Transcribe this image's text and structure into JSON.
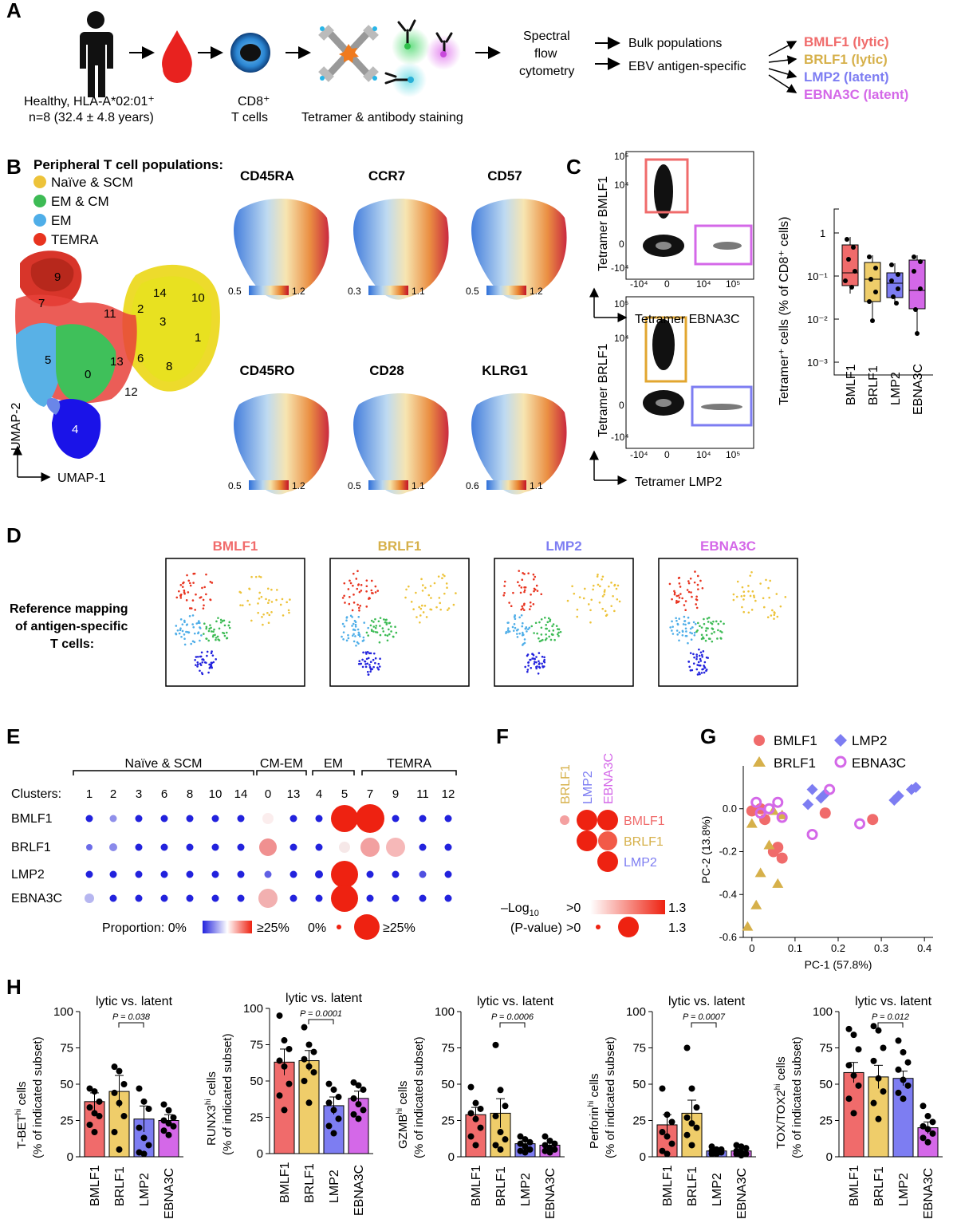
{
  "colors": {
    "bmlf1": "#F06B6B",
    "brlf1": "#D6B04A",
    "lmp2": "#7D7DF2",
    "ebna3c": "#D468E8",
    "naive": "#EDC33A",
    "emcm": "#3DBB55",
    "em": "#4FAEE8",
    "temra": "#E8331F",
    "dot_blue": "#2222DD",
    "dot_red": "#EE2211"
  },
  "panel_a": {
    "letter": "A",
    "donor_line1": "Healthy, HLA-A*02:01⁺",
    "donor_line2": "n=8 (32.4 ± 4.8 years)",
    "cells_line1": "CD8⁺",
    "cells_line2": "T cells",
    "staining": "Tetramer & antibody staining",
    "cytometry": [
      "Spectral",
      "flow",
      "cytometry"
    ],
    "bulk": "Bulk populations",
    "antigen": "EBV antigen-specific",
    "antigens": [
      "BMLF1 (lytic)",
      "BRLF1 (lytic)",
      "LMP2 (latent)",
      "EBNA3C (latent)"
    ],
    "icons": [
      "person-icon",
      "blood-drop-icon",
      "t-cell-icon",
      "tetramer-icon",
      "antibody-icon"
    ]
  },
  "panel_b": {
    "letter": "B",
    "legend_title": "Peripheral T cell populations:",
    "legend": [
      "Naïve & SCM",
      "EM & CM",
      "EM",
      "TEMRA"
    ],
    "clusters": [
      "9",
      "7",
      "14",
      "10",
      "11",
      "2",
      "3",
      "1",
      "5",
      "0",
      "13",
      "6",
      "8",
      "12",
      "4"
    ],
    "axis_x": "UMAP-1",
    "axis_y": "UMAP-2",
    "markers": [
      {
        "name": "CD45RA",
        "range": [
          "0.5",
          "1.2"
        ]
      },
      {
        "name": "CCR7",
        "range": [
          "0.3",
          "1.1"
        ]
      },
      {
        "name": "CD57",
        "range": [
          "0.5",
          "1.2"
        ]
      },
      {
        "name": "CD45RO",
        "range": [
          "0.5",
          "1.2"
        ]
      },
      {
        "name": "CD28",
        "range": [
          "0.5",
          "1.1"
        ]
      },
      {
        "name": "KLRG1",
        "range": [
          "0.6",
          "1.1"
        ]
      }
    ]
  },
  "panel_c": {
    "letter": "C",
    "flow1_y": "Tetramer BMLF1",
    "flow1_x": "Tetramer EBNA3C",
    "flow2_y": "Tetramer BRLF1",
    "flow2_x": "Tetramer LMP2",
    "flow_ticks": [
      "-10⁴",
      "0",
      "10⁴",
      "10⁵"
    ],
    "flow_yticks": [
      "10⁵",
      "10⁴",
      "0",
      "-10⁴"
    ]
  },
  "panel_d": {
    "letter": "D",
    "label": [
      "Reference mapping",
      "of antigen-specific",
      "T cells:"
    ],
    "titles": [
      "BMLF1",
      "BRLF1",
      "LMP2",
      "EBNA3C"
    ]
  },
  "panel_e": {
    "letter": "E",
    "groups": [
      "Naïve & SCM",
      "CM-EM",
      "EM",
      "TEMRA"
    ],
    "clusters_label": "Clusters:",
    "clusters": [
      "1",
      "2",
      "3",
      "6",
      "8",
      "10",
      "14",
      "0",
      "13",
      "4",
      "5",
      "7",
      "9",
      "11",
      "12"
    ],
    "rows": [
      "BMLF1",
      "BRLF1",
      "LMP2",
      "EBNA3C"
    ],
    "proportion_label": "Proportion: 0%",
    "proportion_max": "≥25%",
    "size_min": "0%",
    "size_max": "≥25%"
  },
  "panel_f": {
    "letter": "F",
    "cols": [
      "BRLF1",
      "LMP2",
      "EBNA3C"
    ],
    "rows": [
      "BMLF1",
      "BRLF1",
      "LMP2"
    ],
    "legend_label1": "–Log",
    "legend_sub": "10",
    "legend_label2": "(P-value)",
    "min": ">0",
    "max": "1.3"
  },
  "panel_g": {
    "letter": "G",
    "legend": [
      "BMLF1",
      "LMP2",
      "BRLF1",
      "EBNA3C"
    ],
    "xlabel": "PC-1 (57.8%)",
    "ylabel": "PC-2 (13.8%)",
    "xticks": [
      "0",
      "0.1",
      "0.2",
      "0.3",
      "0.4"
    ],
    "yticks": [
      "0.0",
      "-0.2",
      "-0.4",
      "-0.6"
    ]
  },
  "panel_h": {
    "letter": "H",
    "comparison": "lytic vs. latent",
    "categories": [
      "BMLF1",
      "BRLF1",
      "LMP2",
      "EBNA3C"
    ],
    "yticks": [
      "0",
      "25",
      "50",
      "75",
      "100"
    ]
  },
  "chart_data": [
    {
      "type": "scatter",
      "title": "",
      "xlabel": "PC-1 (57.8%)",
      "ylabel": "PC-2 (13.8%)",
      "xlim": [
        -0.02,
        0.42
      ],
      "ylim": [
        -0.6,
        0.2
      ],
      "series": [
        {
          "name": "BMLF1",
          "points": [
            [
              0.0,
              -0.01
            ],
            [
              0.02,
              0.0
            ],
            [
              0.03,
              -0.05
            ],
            [
              0.05,
              -0.2
            ],
            [
              0.06,
              -0.18
            ],
            [
              0.07,
              -0.23
            ],
            [
              0.17,
              -0.02
            ],
            [
              0.28,
              -0.05
            ]
          ]
        },
        {
          "name": "BRLF1",
          "points": [
            [
              -0.01,
              -0.55
            ],
            [
              0.01,
              -0.45
            ],
            [
              0.0,
              -0.07
            ],
            [
              0.02,
              -0.3
            ],
            [
              0.04,
              -0.17
            ],
            [
              0.06,
              -0.35
            ],
            [
              0.07,
              -0.03
            ],
            [
              0.05,
              -0.01
            ]
          ]
        },
        {
          "name": "LMP2",
          "points": [
            [
              0.13,
              0.02
            ],
            [
              0.14,
              0.09
            ],
            [
              0.16,
              0.05
            ],
            [
              0.17,
              0.07
            ],
            [
              0.33,
              0.04
            ],
            [
              0.34,
              0.06
            ],
            [
              0.37,
              0.09
            ],
            [
              0.38,
              0.1
            ]
          ]
        },
        {
          "name": "EBNA3C",
          "points": [
            [
              0.01,
              0.03
            ],
            [
              0.02,
              -0.02
            ],
            [
              0.04,
              0.0
            ],
            [
              0.06,
              0.03
            ],
            [
              0.07,
              -0.04
            ],
            [
              0.14,
              -0.12
            ],
            [
              0.18,
              0.09
            ],
            [
              0.25,
              -0.07
            ]
          ]
        }
      ]
    },
    {
      "type": "bar",
      "ylabel_main": "T-BET",
      "ylabel_sup": "hi",
      "ylabel_tail": " cells",
      "ylabel2": "(% of indicated subset)",
      "pvalue": "P = 0.038",
      "categories": [
        "BMLF1",
        "BRLF1",
        "LMP2",
        "EBNA3C"
      ],
      "values": [
        38,
        45,
        26,
        25
      ],
      "errors": [
        6,
        11,
        9,
        4
      ],
      "points": [
        [
          47,
          45,
          38,
          34,
          30,
          28,
          22,
          17
        ],
        [
          62,
          59,
          50,
          44,
          37,
          28,
          17,
          5
        ],
        [
          47,
          38,
          33,
          20,
          13,
          8,
          3,
          2
        ],
        [
          36,
          32,
          27,
          25,
          23,
          21,
          18,
          15
        ]
      ],
      "ylim": [
        0,
        100
      ]
    },
    {
      "type": "bar",
      "ylabel_main": "RUNX3",
      "ylabel_sup": "hi",
      "ylabel_tail": " cells",
      "ylabel2": "(% of indicated subset)",
      "pvalue": "P = 0.0001",
      "categories": [
        "BMLF1",
        "BRLF1",
        "LMP2",
        "EBNA3C"
      ],
      "values": [
        63,
        64,
        33,
        38
      ],
      "errors": [
        9,
        7,
        6,
        5
      ],
      "points": [
        [
          95,
          78,
          72,
          64,
          60,
          48,
          40,
          30
        ],
        [
          87,
          75,
          70,
          65,
          60,
          56,
          50,
          35
        ],
        [
          48,
          44,
          39,
          35,
          30,
          24,
          19,
          14
        ],
        [
          49,
          47,
          44,
          38,
          34,
          30,
          27,
          24
        ]
      ],
      "ylim": [
        0,
        100
      ]
    },
    {
      "type": "bar",
      "ylabel_main": "GZMB",
      "ylabel_sup": "hi",
      "ylabel_tail": " cells",
      "ylabel2": "(% of indicated subset)",
      "pvalue": "P = 0.0006",
      "categories": [
        "BMLF1",
        "BRLF1",
        "LMP2",
        "EBNA3C"
      ],
      "values": [
        29,
        30,
        9,
        8
      ],
      "errors": [
        5,
        10,
        2,
        1.5
      ],
      "points": [
        [
          48,
          37,
          33,
          30,
          26,
          20,
          14,
          8
        ],
        [
          77,
          46,
          35,
          28,
          17,
          12,
          8,
          5
        ],
        [
          14,
          12,
          10,
          9,
          7,
          5,
          4,
          3
        ],
        [
          14,
          11,
          9,
          8,
          6,
          5,
          4,
          3
        ]
      ],
      "ylim": [
        0,
        100
      ]
    },
    {
      "type": "bar",
      "ylabel_main": "Perforin",
      "ylabel_sup": "hi",
      "ylabel_tail": " cells",
      "ylabel2": "(% of indicated subset)",
      "pvalue": "P = 0.0007",
      "categories": [
        "BMLF1",
        "BRLF1",
        "LMP2",
        "EBNA3C"
      ],
      "values": [
        22,
        30,
        4,
        4
      ],
      "errors": [
        7,
        9,
        1,
        1
      ],
      "points": [
        [
          47,
          29,
          24,
          17,
          14,
          9,
          4,
          2
        ],
        [
          75,
          47,
          34,
          27,
          23,
          20,
          15,
          8
        ],
        [
          7,
          5,
          5,
          4,
          3,
          3,
          2,
          2
        ],
        [
          8,
          7,
          6,
          4,
          3,
          2,
          2,
          1
        ]
      ],
      "ylim": [
        0,
        100
      ]
    },
    {
      "type": "bar",
      "ylabel_main": "TOX/TOX2",
      "ylabel_sup": "hi",
      "ylabel_tail": " cells",
      "ylabel2": "(% of indicated subset)",
      "pvalue": "P = 0.012",
      "categories": [
        "BMLF1",
        "BRLF1",
        "LMP2",
        "EBNA3C"
      ],
      "values": [
        58,
        55,
        54,
        20
      ],
      "errors": [
        7,
        8,
        5,
        4
      ],
      "points": [
        [
          88,
          84,
          74,
          63,
          56,
          49,
          40,
          30
        ],
        [
          90,
          87,
          75,
          66,
          54,
          45,
          37,
          26
        ],
        [
          80,
          72,
          65,
          60,
          53,
          49,
          44,
          40
        ],
        [
          35,
          28,
          24,
          21,
          19,
          16,
          13,
          10
        ]
      ],
      "ylim": [
        0,
        100
      ]
    }
  ]
}
